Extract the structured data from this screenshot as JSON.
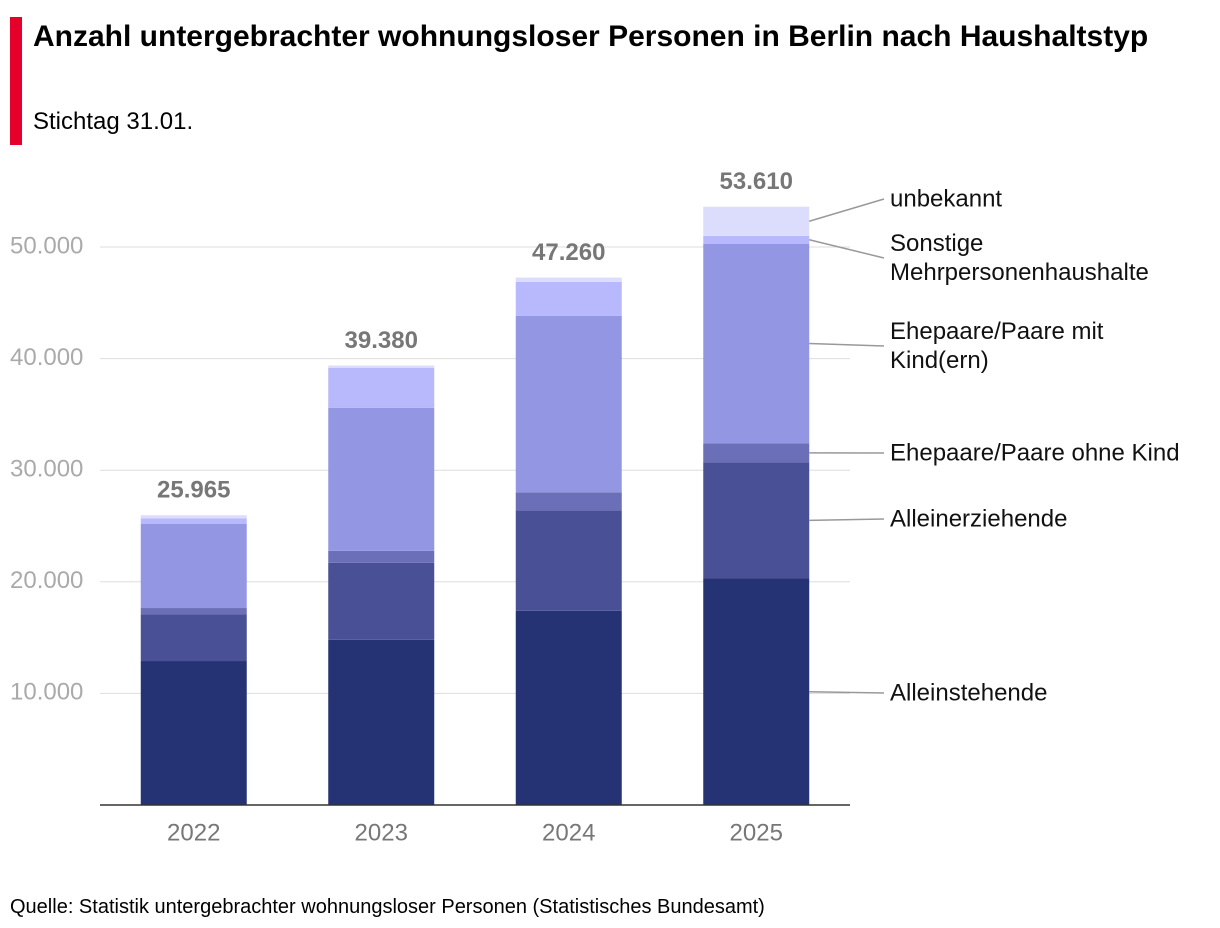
{
  "chart_data": {
    "type": "stacked_bar",
    "title": "Anzahl untergebrachter wohnungsloser Personen in Berlin nach Haushaltstyp",
    "subtitle": "Stichtag 31.01.",
    "source": "Quelle: Statistik untergebrachter wohnungsloser Personen (Statistisches Bundesamt)",
    "categories": [
      "2022",
      "2023",
      "2024",
      "2025"
    ],
    "series": [
      {
        "name": "Alleinstehende",
        "color": "#253374",
        "values": [
          12900,
          14800,
          17400,
          20300
        ]
      },
      {
        "name": "Alleinerziehende",
        "color": "#4a5096",
        "values": [
          4200,
          6900,
          9000,
          10400
        ]
      },
      {
        "name": "Ehepaare/Paare ohne Kind",
        "color": "#6a6fb8",
        "values": [
          550,
          1080,
          1620,
          1700
        ]
      },
      {
        "name": "Ehepaare/Paare mit Kind(ern)",
        "color": "#9397e3",
        "values": [
          7530,
          12800,
          15800,
          17900
        ]
      },
      {
        "name": "Sonstige Mehrpersonenhaushalte",
        "color": "#b8b8fc",
        "values": [
          500,
          3580,
          3050,
          700
        ]
      },
      {
        "name": "unbekannt",
        "color": "#dcdcfc",
        "values": [
          285,
          220,
          390,
          2610
        ]
      }
    ],
    "totals": {
      "values": [
        25965,
        39380,
        47260,
        53610
      ],
      "value_labels": [
        "25.965",
        "39.380",
        "47.260",
        "53.610"
      ]
    },
    "ylim": [
      0,
      56000
    ],
    "yticks": [
      {
        "value": 10000,
        "label": "10.000"
      },
      {
        "value": 20000,
        "label": "20.000"
      },
      {
        "value": 30000,
        "label": "30.000"
      },
      {
        "value": 40000,
        "label": "40.000"
      },
      {
        "value": 50000,
        "label": "50.000"
      }
    ],
    "grid": true
  }
}
